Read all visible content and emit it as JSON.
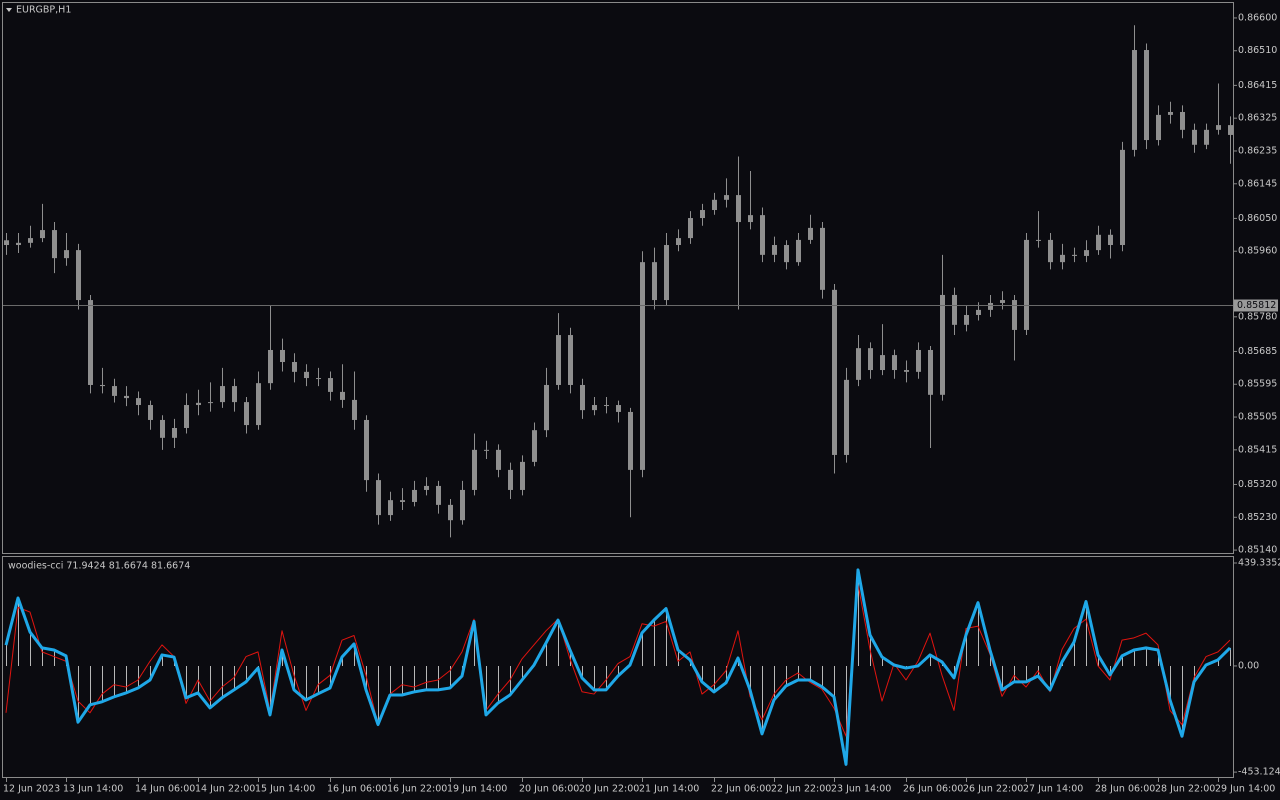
{
  "chart_data": [
    {
      "type": "candlestick",
      "title": "EURGBP,H1",
      "color": "#8f8f8f",
      "current_price": 0.85812,
      "categories": [
        "12 Jun 2023",
        null,
        null,
        null,
        null,
        "13 Jun 14:00",
        null,
        null,
        null,
        null,
        null,
        "14 Jun 06:00",
        null,
        null,
        null,
        null,
        "14 Jun 22:00",
        null,
        null,
        null,
        null,
        "15 Jun 14:00",
        null,
        null,
        null,
        null,
        null,
        "16 Jun 06:00",
        null,
        null,
        null,
        null,
        "16 Jun 22:00",
        null,
        null,
        null,
        null,
        "19 Jun 14:00",
        null,
        null,
        null,
        null,
        null,
        "20 Jun 06:00",
        null,
        null,
        null,
        null,
        "20 Jun 22:00",
        null,
        null,
        null,
        null,
        "21 Jun 14:00",
        null,
        null,
        null,
        null,
        null,
        "22 Jun 06:00",
        null,
        null,
        null,
        null,
        "22 Jun 22:00",
        null,
        null,
        null,
        null,
        "23 Jun 14:00",
        null,
        null,
        null,
        null,
        null,
        "26 Jun 06:00",
        null,
        null,
        null,
        null,
        "26 Jun 22:00",
        null,
        null,
        null,
        null,
        "27 Jun 14:00",
        null,
        null,
        null,
        null,
        null,
        "28 Jun 06:00",
        null,
        null,
        null,
        null,
        "28 Jun 22:00",
        null,
        null,
        null,
        null,
        "29 Jun 14:00",
        null
      ],
      "open": [
        0.8599,
        0.85977,
        0.85983,
        0.85996,
        0.86018,
        0.85941,
        0.85963,
        0.85826,
        0.85593,
        0.8559,
        0.85563,
        0.85557,
        0.85538,
        0.85497,
        0.85448,
        0.85475,
        0.85538,
        0.85544,
        0.85546,
        0.8559,
        0.85546,
        0.85483,
        0.85598,
        0.85689,
        0.85656,
        0.85629,
        0.85612,
        0.85612,
        0.85574,
        0.85552,
        0.85497,
        0.85332,
        0.85236,
        0.85277,
        0.85272,
        0.85305,
        0.85316,
        0.85264,
        0.85222,
        0.85305,
        0.85415,
        0.85415,
        0.8536,
        0.85305,
        0.85382,
        0.85469,
        0.85593,
        0.8573,
        0.85593,
        0.85524,
        0.85538,
        0.85538,
        0.85519,
        0.8536,
        0.8593,
        0.85826,
        0.85977,
        0.85996,
        0.86051,
        0.86073,
        0.86101,
        0.86114,
        0.8604,
        0.86059,
        0.8595,
        0.85977,
        0.8593,
        0.85991,
        0.86024,
        0.85854,
        0.85401,
        0.85607,
        0.85694,
        0.85634,
        0.85675,
        0.85634,
        0.85629,
        0.85689,
        0.85566,
        0.8584,
        0.85758,
        0.85785,
        0.85799,
        0.85818,
        0.85826,
        0.85744,
        0.85991,
        0.85991,
        0.8593,
        0.8595,
        0.85947,
        0.85963,
        0.86005,
        0.85977,
        0.86238,
        0.86512,
        0.86265,
        0.86334,
        0.86342,
        0.86293,
        0.86252,
        0.86293,
        0.86306
      ],
      "high": [
        0.8601,
        0.8601,
        0.8603,
        0.8609,
        0.8604,
        0.8601,
        0.8598,
        0.8584,
        0.8564,
        0.8561,
        0.8559,
        0.85575,
        0.8555,
        0.8551,
        0.855,
        0.8557,
        0.8558,
        0.856,
        0.8564,
        0.8561,
        0.8556,
        0.8563,
        0.8581,
        0.8572,
        0.8568,
        0.8565,
        0.8564,
        0.8563,
        0.8565,
        0.8563,
        0.8551,
        0.8535,
        0.853,
        0.8531,
        0.8533,
        0.8534,
        0.8533,
        0.8528,
        0.8533,
        0.8546,
        0.8544,
        0.8543,
        0.8538,
        0.854,
        0.8549,
        0.8564,
        0.8579,
        0.8575,
        0.8561,
        0.8556,
        0.8556,
        0.8555,
        0.8553,
        0.8596,
        0.8597,
        0.8601,
        0.8602,
        0.8607,
        0.8609,
        0.8612,
        0.8616,
        0.8622,
        0.8618,
        0.8608,
        0.86,
        0.8599,
        0.8601,
        0.8606,
        0.8604,
        0.8587,
        0.8564,
        0.8573,
        0.8571,
        0.8576,
        0.8569,
        0.8566,
        0.8571,
        0.857,
        0.8595,
        0.8586,
        0.8581,
        0.8582,
        0.8584,
        0.8585,
        0.8584,
        0.8601,
        0.8607,
        0.8601,
        0.8598,
        0.8597,
        0.8599,
        0.8603,
        0.8602,
        0.8626,
        0.8658,
        0.8653,
        0.8636,
        0.8637,
        0.8636,
        0.8631,
        0.8631,
        0.8642,
        0.8633
      ],
      "low": [
        0.8595,
        0.85955,
        0.8597,
        0.85985,
        0.859,
        0.8592,
        0.858,
        0.8557,
        0.8557,
        0.85545,
        0.85535,
        0.8551,
        0.8547,
        0.85415,
        0.8542,
        0.8546,
        0.8551,
        0.8552,
        0.8553,
        0.8552,
        0.8546,
        0.8547,
        0.8558,
        0.8563,
        0.856,
        0.8559,
        0.8559,
        0.8555,
        0.8553,
        0.8547,
        0.853,
        0.8521,
        0.8522,
        0.8525,
        0.8526,
        0.8529,
        0.8524,
        0.85175,
        0.8521,
        0.8529,
        0.8539,
        0.8534,
        0.8528,
        0.8529,
        0.8537,
        0.8545,
        0.8558,
        0.8557,
        0.855,
        0.8551,
        0.85515,
        0.8549,
        0.8523,
        0.8534,
        0.858,
        0.8581,
        0.8596,
        0.8598,
        0.8603,
        0.8606,
        0.8608,
        0.858,
        0.8602,
        0.8593,
        0.8593,
        0.8591,
        0.8592,
        0.8598,
        0.8583,
        0.8535,
        0.8538,
        0.8559,
        0.8561,
        0.8562,
        0.8561,
        0.856,
        0.8561,
        0.8542,
        0.8555,
        0.8573,
        0.8574,
        0.8577,
        0.8578,
        0.858,
        0.8566,
        0.8573,
        0.8597,
        0.8591,
        0.8591,
        0.8593,
        0.8593,
        0.8595,
        0.8594,
        0.8596,
        0.8622,
        0.8624,
        0.8625,
        0.8631,
        0.8627,
        0.8623,
        0.8624,
        0.8628,
        0.862
      ],
      "close": [
        0.85977,
        0.85983,
        0.85996,
        0.86018,
        0.85941,
        0.85963,
        0.85826,
        0.85593,
        0.8559,
        0.85563,
        0.85557,
        0.85538,
        0.85497,
        0.85448,
        0.85475,
        0.85538,
        0.85544,
        0.85546,
        0.8559,
        0.85546,
        0.85483,
        0.85598,
        0.85689,
        0.85656,
        0.85629,
        0.85612,
        0.85612,
        0.85574,
        0.85552,
        0.85497,
        0.85332,
        0.85236,
        0.85277,
        0.85272,
        0.85305,
        0.85316,
        0.85264,
        0.85222,
        0.85305,
        0.85415,
        0.85415,
        0.8536,
        0.85305,
        0.85382,
        0.85469,
        0.85593,
        0.8573,
        0.85593,
        0.85524,
        0.85538,
        0.85538,
        0.85519,
        0.8536,
        0.8593,
        0.85826,
        0.85977,
        0.85996,
        0.86051,
        0.86073,
        0.86101,
        0.86114,
        0.8604,
        0.86059,
        0.8595,
        0.85977,
        0.8593,
        0.85991,
        0.86024,
        0.85854,
        0.85401,
        0.85607,
        0.85694,
        0.85634,
        0.85675,
        0.85634,
        0.85629,
        0.85689,
        0.85566,
        0.8584,
        0.85758,
        0.85785,
        0.85799,
        0.85818,
        0.85826,
        0.85744,
        0.85991,
        0.85991,
        0.8593,
        0.8595,
        0.85947,
        0.85963,
        0.86005,
        0.85977,
        0.86238,
        0.86512,
        0.86265,
        0.86334,
        0.86342,
        0.86293,
        0.86252,
        0.86293,
        0.86306,
        0.86279
      ],
      "ylim": [
        0.85132,
        0.86641
      ],
      "yticks": [
        {
          "value": 0.866,
          "label": "0.86600"
        },
        {
          "value": 0.8651,
          "label": "0.86510"
        },
        {
          "value": 0.86415,
          "label": "0.86415"
        },
        {
          "value": 0.86325,
          "label": "0.86325"
        },
        {
          "value": 0.86235,
          "label": "0.86235"
        },
        {
          "value": 0.86145,
          "label": "0.86145"
        },
        {
          "value": 0.8605,
          "label": "0.86050"
        },
        {
          "value": 0.8596,
          "label": "0.85960"
        },
        {
          "value": 0.8578,
          "label": "0.85780"
        },
        {
          "value": 0.85685,
          "label": "0.85685"
        },
        {
          "value": 0.85595,
          "label": "0.85595"
        },
        {
          "value": 0.85505,
          "label": "0.85505"
        },
        {
          "value": 0.85415,
          "label": "0.85415"
        },
        {
          "value": 0.8532,
          "label": "0.85320"
        },
        {
          "value": 0.8523,
          "label": "0.85230"
        },
        {
          "value": 0.8514,
          "label": "0.85140"
        }
      ]
    },
    {
      "type": "line",
      "title": "woodies-cci 71.9424 81.6674 81.6674",
      "histogram": true,
      "histogram_color": "#b8b8b8",
      "series": [
        {
          "color": "#e0140f",
          "width": 1,
          "values": [
            -200,
            250,
            230,
            60,
            40,
            20,
            -150,
            -200,
            -120,
            -80,
            -90,
            -60,
            20,
            90,
            40,
            -160,
            -60,
            -150,
            -90,
            -50,
            40,
            60,
            -190,
            150,
            -40,
            -190,
            -80,
            -40,
            110,
            130,
            -40,
            -250,
            -120,
            -80,
            -90,
            -70,
            -60,
            -20,
            60,
            200,
            -190,
            -120,
            -60,
            30,
            90,
            150,
            200,
            30,
            -110,
            -120,
            -60,
            10,
            40,
            180,
            170,
            190,
            20,
            60,
            -120,
            -80,
            -20,
            150,
            -130,
            -230,
            -120,
            -60,
            -30,
            -70,
            -100,
            -180,
            -300,
            350,
            70,
            -150,
            10,
            -60,
            20,
            140,
            -40,
            -190,
            160,
            170,
            50,
            -130,
            -40,
            -90,
            -20,
            -110,
            70,
            160,
            200,
            0,
            -60,
            110,
            120,
            140,
            90,
            -190,
            -250,
            -50,
            40,
            60,
            110
          ]
        },
        {
          "color": "#1fa8e8",
          "width": 3,
          "values": [
            89,
            290,
            145,
            77,
            68,
            43,
            -240,
            -166,
            -153,
            -132,
            -115,
            -94,
            -60,
            47,
            38,
            -136,
            -115,
            -179,
            -136,
            -102,
            -68,
            -9,
            -209,
            68,
            -102,
            -145,
            -119,
            -94,
            38,
            94,
            -102,
            -250,
            -124,
            -124,
            -111,
            -102,
            -102,
            -94,
            -43,
            190,
            -209,
            -158,
            -124,
            -60,
            4,
            98,
            196,
            68,
            -51,
            -102,
            -102,
            -43,
            4,
            141,
            196,
            245,
            68,
            26,
            -68,
            -111,
            -72,
            34,
            -102,
            -290,
            -145,
            -85,
            -60,
            -60,
            -89,
            -132,
            -420,
            410,
            132,
            38,
            4,
            -9,
            0,
            47,
            17,
            -51,
            132,
            270,
            68,
            -102,
            -68,
            -68,
            -43,
            -102,
            17,
            102,
            275,
            47,
            -38,
            43,
            68,
            77,
            68,
            -145,
            -300,
            -68,
            4,
            26,
            77
          ]
        }
      ],
      "ylim": [
        -474,
        465
      ],
      "yticks": [
        439.3352,
        {
          "value": 0,
          "label": "0.00"
        },
        -453.1244
      ]
    }
  ]
}
